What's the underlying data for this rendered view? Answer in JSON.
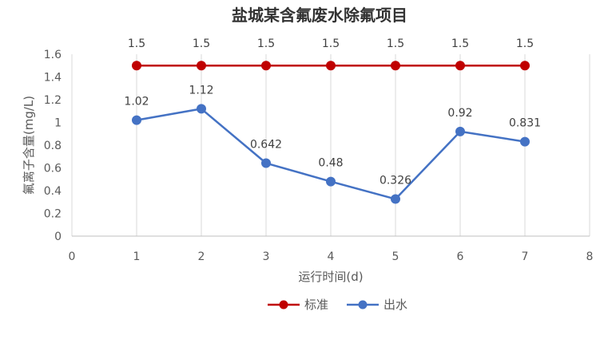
{
  "chart_data": {
    "type": "line",
    "title": "盐城某含氟废水除氟项目",
    "xlabel": "运行时间(d)",
    "ylabel": "氟离子含量(mg/L)",
    "xlim": [
      0,
      8
    ],
    "ylim": [
      0,
      1.6
    ],
    "x_ticks": [
      "0",
      "1",
      "2",
      "3",
      "4",
      "5",
      "6",
      "7",
      "8"
    ],
    "y_ticks": [
      "0",
      "0.2",
      "0.4",
      "0.6",
      "0.8",
      "1",
      "1.2",
      "1.4",
      "1.6"
    ],
    "grid": "vertical",
    "legend_position": "bottom",
    "series": [
      {
        "name": "标准",
        "color": "#C00000",
        "x": [
          1,
          2,
          3,
          4,
          5,
          6,
          7
        ],
        "values": [
          1.5,
          1.5,
          1.5,
          1.5,
          1.5,
          1.5,
          1.5
        ],
        "labels": [
          "1.5",
          "1.5",
          "1.5",
          "1.5",
          "1.5",
          "1.5",
          "1.5"
        ]
      },
      {
        "name": "出水",
        "color": "#4472C4",
        "x": [
          1,
          2,
          3,
          4,
          5,
          6,
          7
        ],
        "values": [
          1.02,
          1.12,
          0.642,
          0.48,
          0.326,
          0.92,
          0.831
        ],
        "labels": [
          "1.02",
          "1.12",
          "0.642",
          "0.48",
          "0.326",
          "0.92",
          "0.831"
        ]
      }
    ]
  }
}
